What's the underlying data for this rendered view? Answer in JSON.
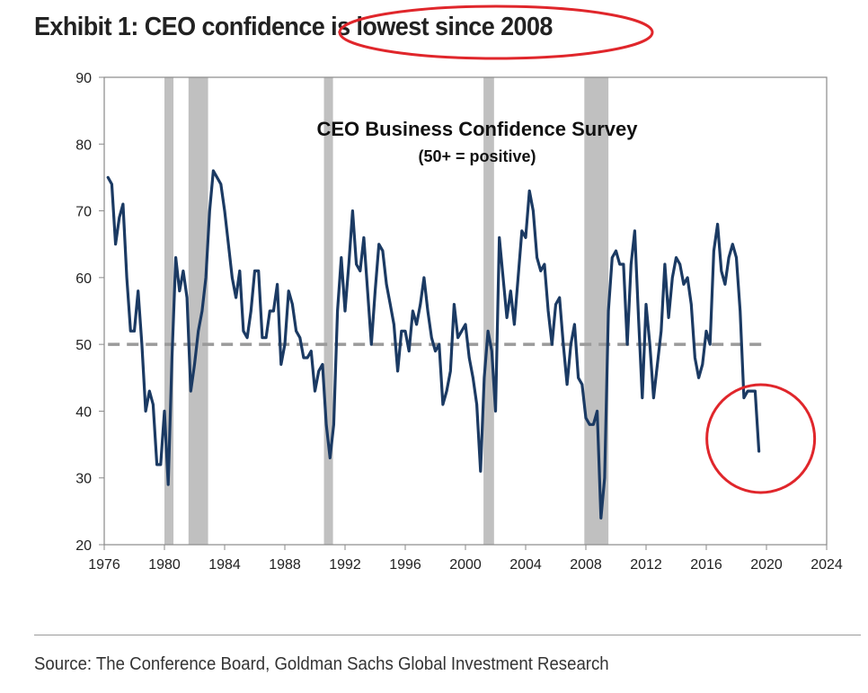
{
  "page": {
    "title": "Exhibit 1: CEO confidence is lowest since 2008",
    "source": "Source: The Conference Board, Goldman Sachs Global Investment Research"
  },
  "chart_data": {
    "type": "line",
    "title": "CEO Business Confidence Survey",
    "subtitle": "(50+ = positive)",
    "xlabel": "",
    "ylabel": "",
    "xlim": [
      1976,
      2024
    ],
    "ylim": [
      20,
      90
    ],
    "x_ticks": [
      1976,
      1980,
      1984,
      1988,
      1992,
      1996,
      2000,
      2004,
      2008,
      2012,
      2016,
      2020,
      2024
    ],
    "y_ticks": [
      20,
      30,
      40,
      50,
      60,
      70,
      80,
      90
    ],
    "grid": false,
    "reference_line": {
      "y": 50,
      "style": "dashed",
      "color": "#9a9a9a"
    },
    "recession_periods": [
      [
        1980.0,
        1980.6
      ],
      [
        1981.6,
        1982.9
      ],
      [
        1990.6,
        1991.2
      ],
      [
        2001.2,
        2001.9
      ],
      [
        2007.9,
        2009.5
      ]
    ],
    "recession_color": "#c0c0c0",
    "line_color": "#1b3a63",
    "highlight_color": "#e0262b",
    "series": [
      {
        "name": "",
        "points": [
          [
            1976.25,
            75
          ],
          [
            1976.5,
            74
          ],
          [
            1976.75,
            65
          ],
          [
            1977.0,
            69
          ],
          [
            1977.25,
            71
          ],
          [
            1977.5,
            60
          ],
          [
            1977.75,
            52
          ],
          [
            1978.0,
            52
          ],
          [
            1978.25,
            58
          ],
          [
            1978.5,
            50
          ],
          [
            1978.75,
            40
          ],
          [
            1979.0,
            43
          ],
          [
            1979.25,
            41
          ],
          [
            1979.5,
            32
          ],
          [
            1979.75,
            32
          ],
          [
            1980.0,
            40
          ],
          [
            1980.25,
            29
          ],
          [
            1980.5,
            48
          ],
          [
            1980.75,
            63
          ],
          [
            1981.0,
            58
          ],
          [
            1981.25,
            61
          ],
          [
            1981.5,
            57
          ],
          [
            1981.75,
            43
          ],
          [
            1982.0,
            47
          ],
          [
            1982.25,
            52
          ],
          [
            1982.5,
            55
          ],
          [
            1982.75,
            60
          ],
          [
            1983.0,
            70
          ],
          [
            1983.25,
            76
          ],
          [
            1983.5,
            75
          ],
          [
            1983.75,
            74
          ],
          [
            1984.0,
            70
          ],
          [
            1984.25,
            65
          ],
          [
            1984.5,
            60
          ],
          [
            1984.75,
            57
          ],
          [
            1985.0,
            61
          ],
          [
            1985.25,
            52
          ],
          [
            1985.5,
            51
          ],
          [
            1985.75,
            55
          ],
          [
            1986.0,
            61
          ],
          [
            1986.25,
            61
          ],
          [
            1986.5,
            51
          ],
          [
            1986.75,
            51
          ],
          [
            1987.0,
            55
          ],
          [
            1987.25,
            55
          ],
          [
            1987.5,
            59
          ],
          [
            1987.75,
            47
          ],
          [
            1988.0,
            50
          ],
          [
            1988.25,
            58
          ],
          [
            1988.5,
            56
          ],
          [
            1988.75,
            52
          ],
          [
            1989.0,
            51
          ],
          [
            1989.25,
            48
          ],
          [
            1989.5,
            48
          ],
          [
            1989.75,
            49
          ],
          [
            1990.0,
            43
          ],
          [
            1990.25,
            46
          ],
          [
            1990.5,
            47
          ],
          [
            1990.75,
            38
          ],
          [
            1991.0,
            33
          ],
          [
            1991.25,
            38
          ],
          [
            1991.5,
            55
          ],
          [
            1991.75,
            63
          ],
          [
            1992.0,
            55
          ],
          [
            1992.25,
            62
          ],
          [
            1992.5,
            70
          ],
          [
            1992.75,
            62
          ],
          [
            1993.0,
            61
          ],
          [
            1993.25,
            66
          ],
          [
            1993.5,
            58
          ],
          [
            1993.75,
            50
          ],
          [
            1994.0,
            58
          ],
          [
            1994.25,
            65
          ],
          [
            1994.5,
            64
          ],
          [
            1994.75,
            59
          ],
          [
            1995.0,
            56
          ],
          [
            1995.25,
            53
          ],
          [
            1995.5,
            46
          ],
          [
            1995.75,
            52
          ],
          [
            1996.0,
            52
          ],
          [
            1996.25,
            49
          ],
          [
            1996.5,
            55
          ],
          [
            1996.75,
            53
          ],
          [
            1997.0,
            56
          ],
          [
            1997.25,
            60
          ],
          [
            1997.5,
            55
          ],
          [
            1997.75,
            51
          ],
          [
            1998.0,
            49
          ],
          [
            1998.25,
            50
          ],
          [
            1998.5,
            41
          ],
          [
            1998.75,
            43
          ],
          [
            1999.0,
            46
          ],
          [
            1999.25,
            56
          ],
          [
            1999.5,
            51
          ],
          [
            1999.75,
            52
          ],
          [
            2000.0,
            53
          ],
          [
            2000.25,
            48
          ],
          [
            2000.5,
            45
          ],
          [
            2000.75,
            41
          ],
          [
            2001.0,
            31
          ],
          [
            2001.25,
            45
          ],
          [
            2001.5,
            52
          ],
          [
            2001.75,
            49
          ],
          [
            2002.0,
            40
          ],
          [
            2002.25,
            66
          ],
          [
            2002.5,
            60
          ],
          [
            2002.75,
            54
          ],
          [
            2003.0,
            58
          ],
          [
            2003.25,
            53
          ],
          [
            2003.5,
            60
          ],
          [
            2003.75,
            67
          ],
          [
            2004.0,
            66
          ],
          [
            2004.25,
            73
          ],
          [
            2004.5,
            70
          ],
          [
            2004.75,
            63
          ],
          [
            2005.0,
            61
          ],
          [
            2005.25,
            62
          ],
          [
            2005.5,
            55
          ],
          [
            2005.75,
            50
          ],
          [
            2006.0,
            56
          ],
          [
            2006.25,
            57
          ],
          [
            2006.5,
            50
          ],
          [
            2006.75,
            44
          ],
          [
            2007.0,
            50
          ],
          [
            2007.25,
            53
          ],
          [
            2007.5,
            45
          ],
          [
            2007.75,
            44
          ],
          [
            2008.0,
            39
          ],
          [
            2008.25,
            38
          ],
          [
            2008.5,
            38
          ],
          [
            2008.75,
            40
          ],
          [
            2009.0,
            24
          ],
          [
            2009.25,
            30
          ],
          [
            2009.5,
            55
          ],
          [
            2009.75,
            63
          ],
          [
            2010.0,
            64
          ],
          [
            2010.25,
            62
          ],
          [
            2010.5,
            62
          ],
          [
            2010.75,
            50
          ],
          [
            2011.0,
            62
          ],
          [
            2011.25,
            67
          ],
          [
            2011.5,
            54
          ],
          [
            2011.75,
            42
          ],
          [
            2012.0,
            56
          ],
          [
            2012.25,
            50
          ],
          [
            2012.5,
            42
          ],
          [
            2012.75,
            47
          ],
          [
            2013.0,
            52
          ],
          [
            2013.25,
            62
          ],
          [
            2013.5,
            54
          ],
          [
            2013.75,
            60
          ],
          [
            2014.0,
            63
          ],
          [
            2014.25,
            62
          ],
          [
            2014.5,
            59
          ],
          [
            2014.75,
            60
          ],
          [
            2015.0,
            56
          ],
          [
            2015.25,
            48
          ],
          [
            2015.5,
            45
          ],
          [
            2015.75,
            47
          ],
          [
            2016.0,
            52
          ],
          [
            2016.25,
            50
          ],
          [
            2016.5,
            64
          ],
          [
            2016.75,
            68
          ],
          [
            2017.0,
            61
          ],
          [
            2017.25,
            59
          ],
          [
            2017.5,
            63
          ],
          [
            2017.75,
            65
          ],
          [
            2018.0,
            63
          ],
          [
            2018.25,
            55
          ],
          [
            2018.5,
            42
          ],
          [
            2018.75,
            43
          ],
          [
            2019.0,
            43
          ],
          [
            2019.25,
            43
          ],
          [
            2019.5,
            34
          ]
        ]
      }
    ]
  }
}
